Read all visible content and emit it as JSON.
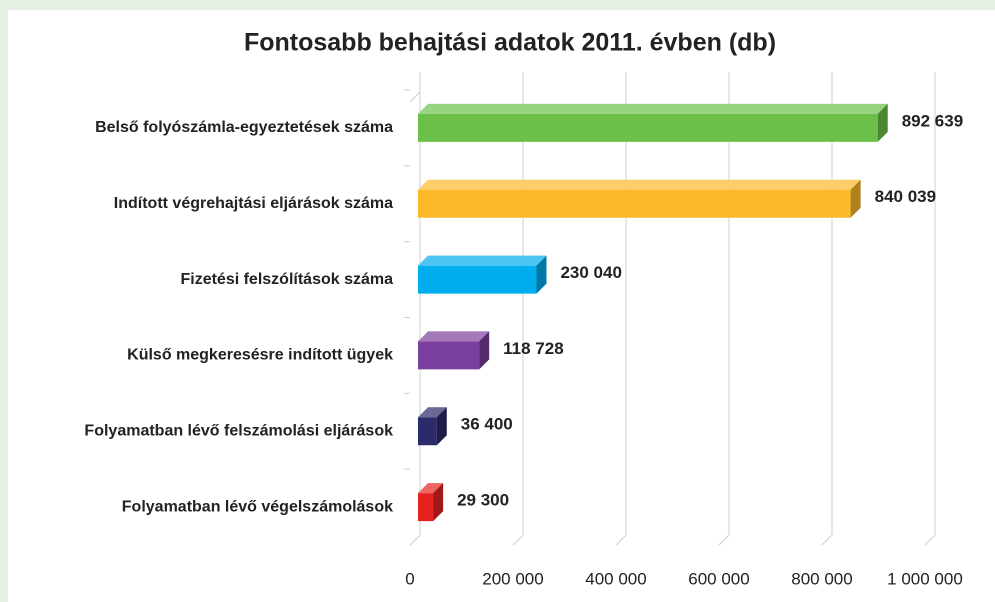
{
  "chart_data": {
    "type": "bar3d_horizontal",
    "title": "Fontosabb behajtási adatok 2011. évben (db)",
    "categories": [
      "Belső folyószámla-egyeztetések száma",
      "Indított végrehajtási eljárások száma",
      "Fizetési felszólítások száma",
      "Külső megkeresésre indított ügyek",
      "Folyamatban lévő felszámolási eljárások",
      "Folyamatban lévő végelszámolások"
    ],
    "values": [
      892639,
      840039,
      230040,
      118728,
      36400,
      29300
    ],
    "value_labels": [
      "892 639",
      "840 039",
      "230 040",
      "118 728",
      "36 400",
      "29 300"
    ],
    "colors": [
      "#6cc04a",
      "#fbb829",
      "#00aeef",
      "#7b3f9e",
      "#2b2a6b",
      "#e52421"
    ],
    "xlim": [
      0,
      1000000
    ],
    "xticks": [
      0,
      {
        "value": 200000,
        "label": "200 000"
      },
      {
        "value": 400000,
        "label": "400 000"
      },
      {
        "value": 600000,
        "label": "600 000"
      },
      {
        "value": 800000,
        "label": "800 000"
      },
      {
        "value": 1000000,
        "label": "1 000 000"
      }
    ],
    "grid": true
  }
}
